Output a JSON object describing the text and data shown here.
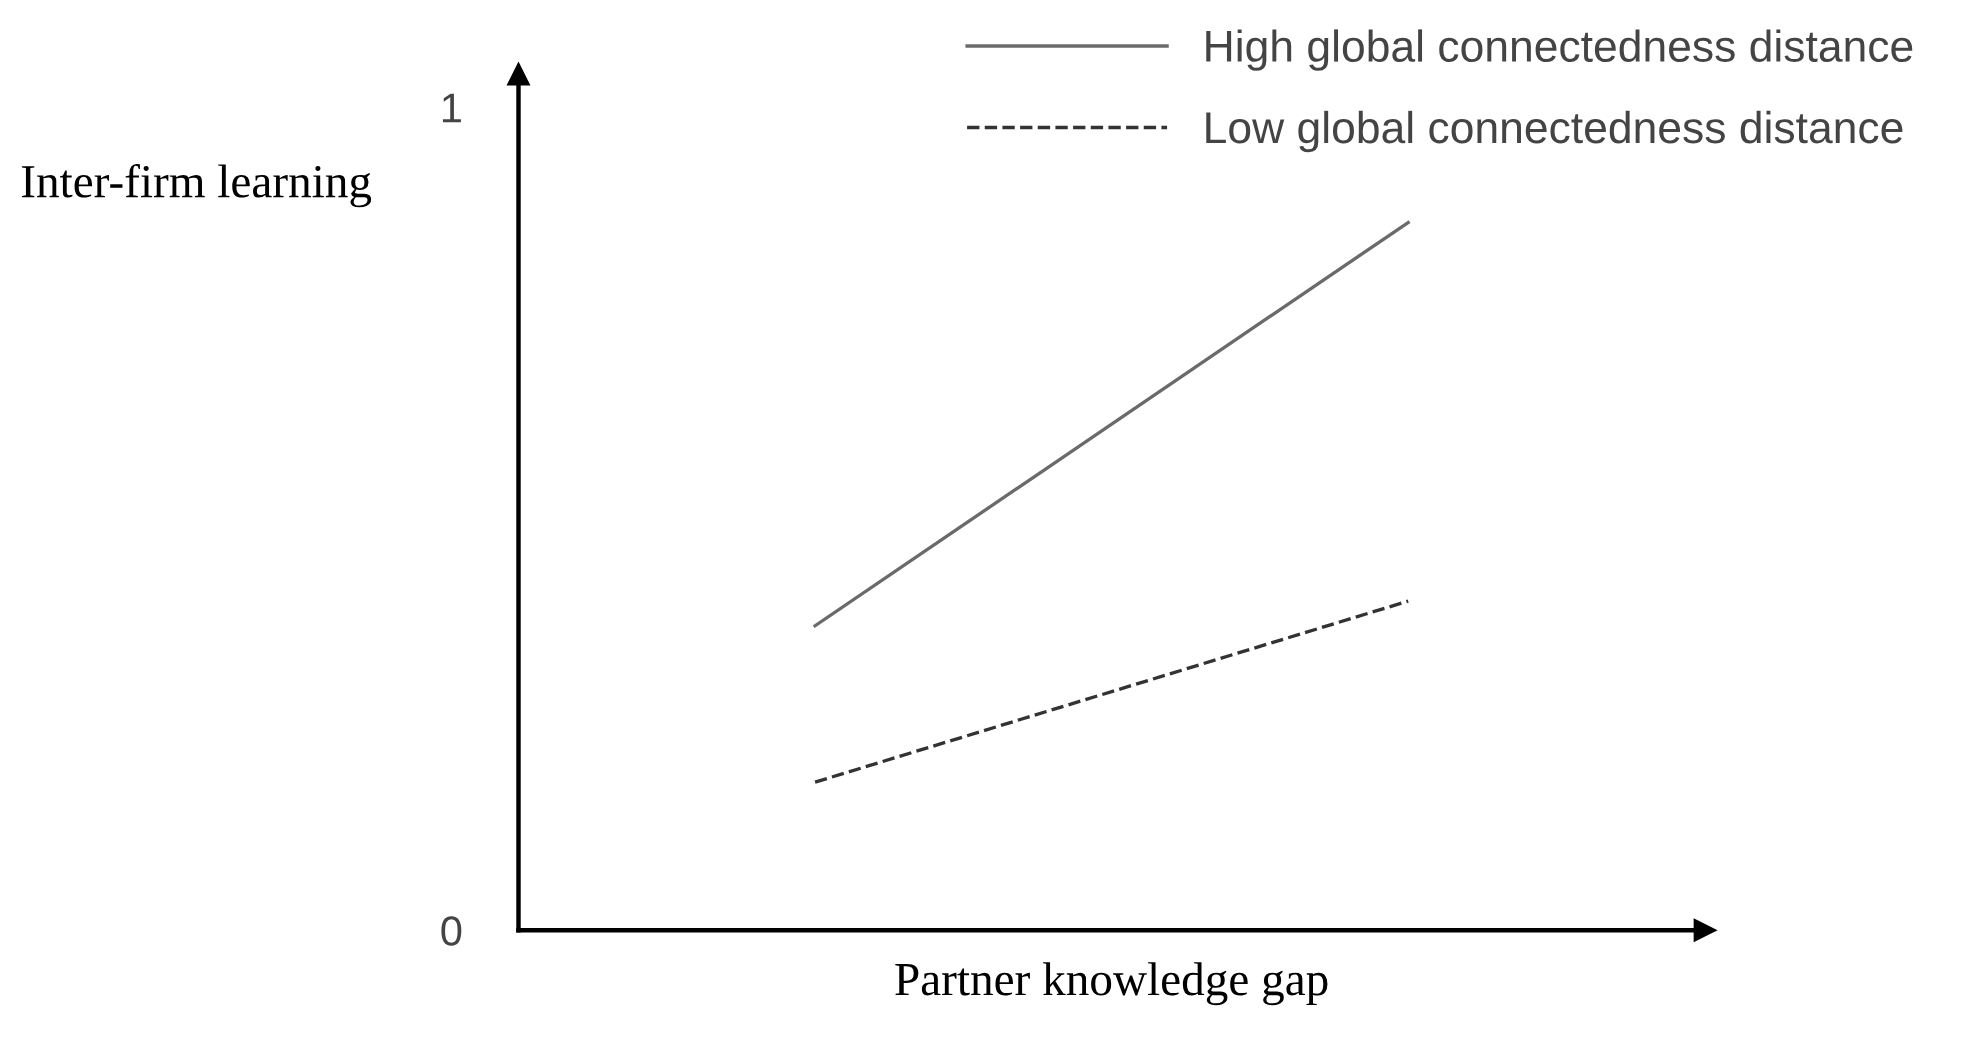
{
  "chart_data": {
    "type": "line",
    "xlabel": "Partner knowledge gap",
    "ylabel": "Inter-firm learning",
    "categories": [
      null,
      null
    ],
    "series": [
      {
        "name": "High global connectedness distance",
        "color": "#6a6a6a",
        "values": [
          0.37,
          0.86
        ],
        "line_style": "solid"
      },
      {
        "name": "Low global connectedness distance",
        "color": "#333333",
        "values": [
          0.18,
          0.4
        ],
        "line_style": "dashed"
      }
    ],
    "ylim": [
      0,
      1.04
    ],
    "yticks": [
      0,
      1
    ],
    "legend": "top right",
    "grid": false,
    "marker": "none"
  }
}
